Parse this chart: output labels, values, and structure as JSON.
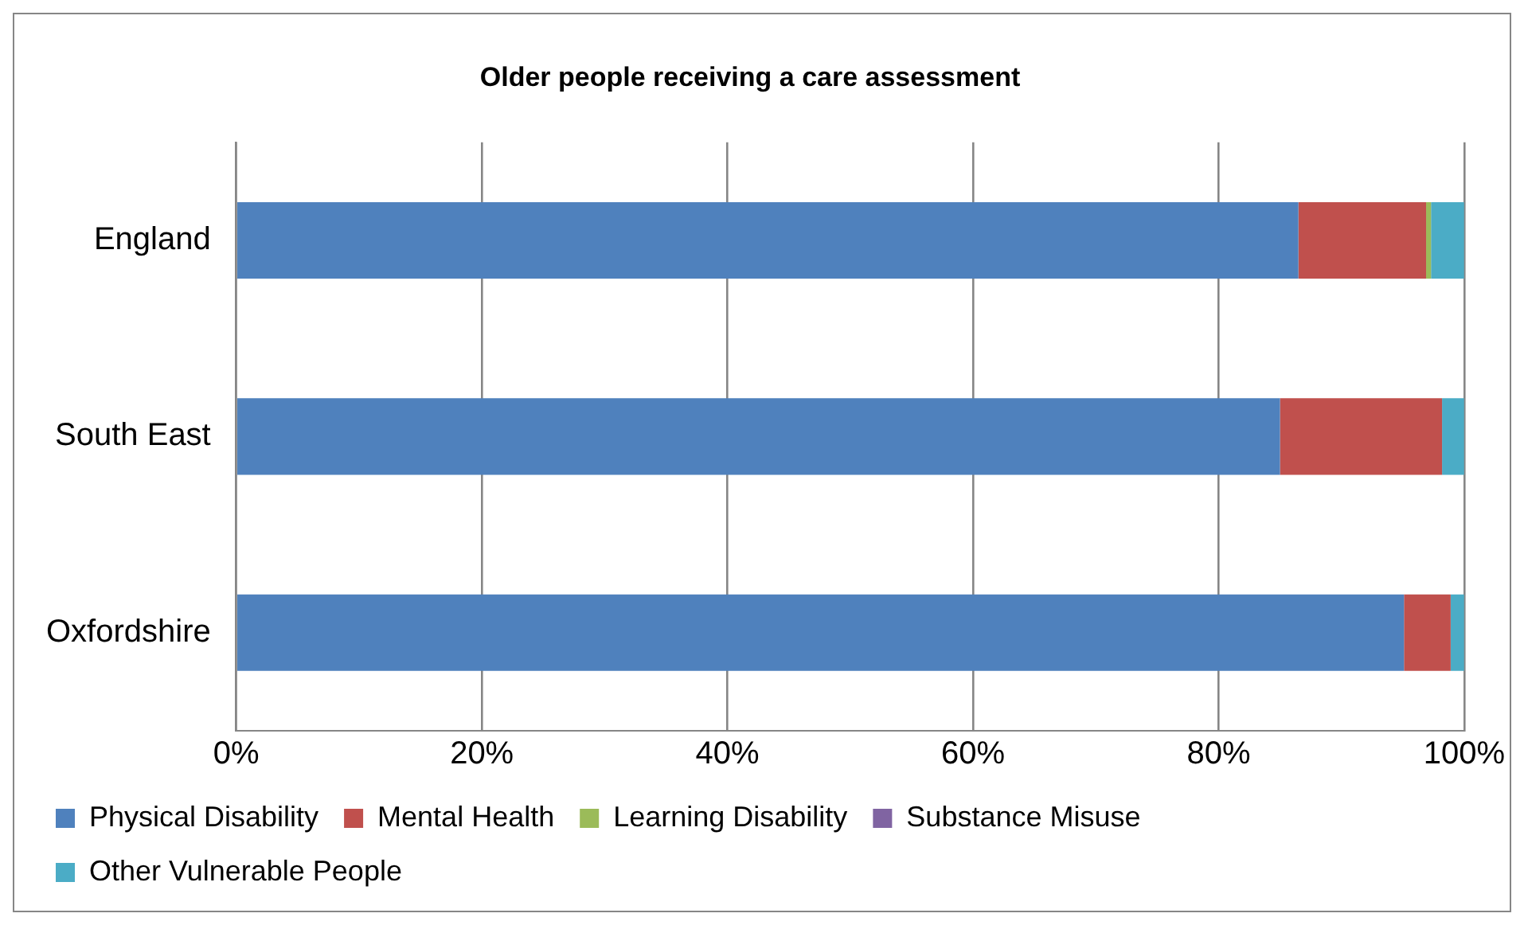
{
  "chart_data": {
    "type": "bar",
    "title": "Older people receiving a care assessment",
    "orientation": "horizontal",
    "stacked": true,
    "categories": [
      "England",
      "South East",
      "Oxfordshire"
    ],
    "series": [
      {
        "name": "Physical Disability",
        "color": "#4f81bd",
        "values": [
          86.5,
          85.0,
          95.1
        ]
      },
      {
        "name": "Mental Health",
        "color": "#c0504d",
        "values": [
          10.4,
          13.2,
          3.8
        ]
      },
      {
        "name": "Learning Disability",
        "color": "#9bbb59",
        "values": [
          0.4,
          0,
          0
        ]
      },
      {
        "name": "Substance Misuse",
        "color": "#8064a2",
        "values": [
          0,
          0,
          0
        ]
      },
      {
        "name": "Other Vulnerable People",
        "color": "#4bacc6",
        "values": [
          2.7,
          1.8,
          1.1
        ]
      }
    ],
    "xlim": [
      0,
      100
    ],
    "xticks": [
      {
        "value": 0,
        "label": "0%"
      },
      {
        "value": 20,
        "label": "20%"
      },
      {
        "value": 40,
        "label": "40%"
      },
      {
        "value": 60,
        "label": "60%"
      },
      {
        "value": 80,
        "label": "80%"
      },
      {
        "value": 100,
        "label": "100%"
      }
    ],
    "grid": "x",
    "legend": "bottom"
  }
}
